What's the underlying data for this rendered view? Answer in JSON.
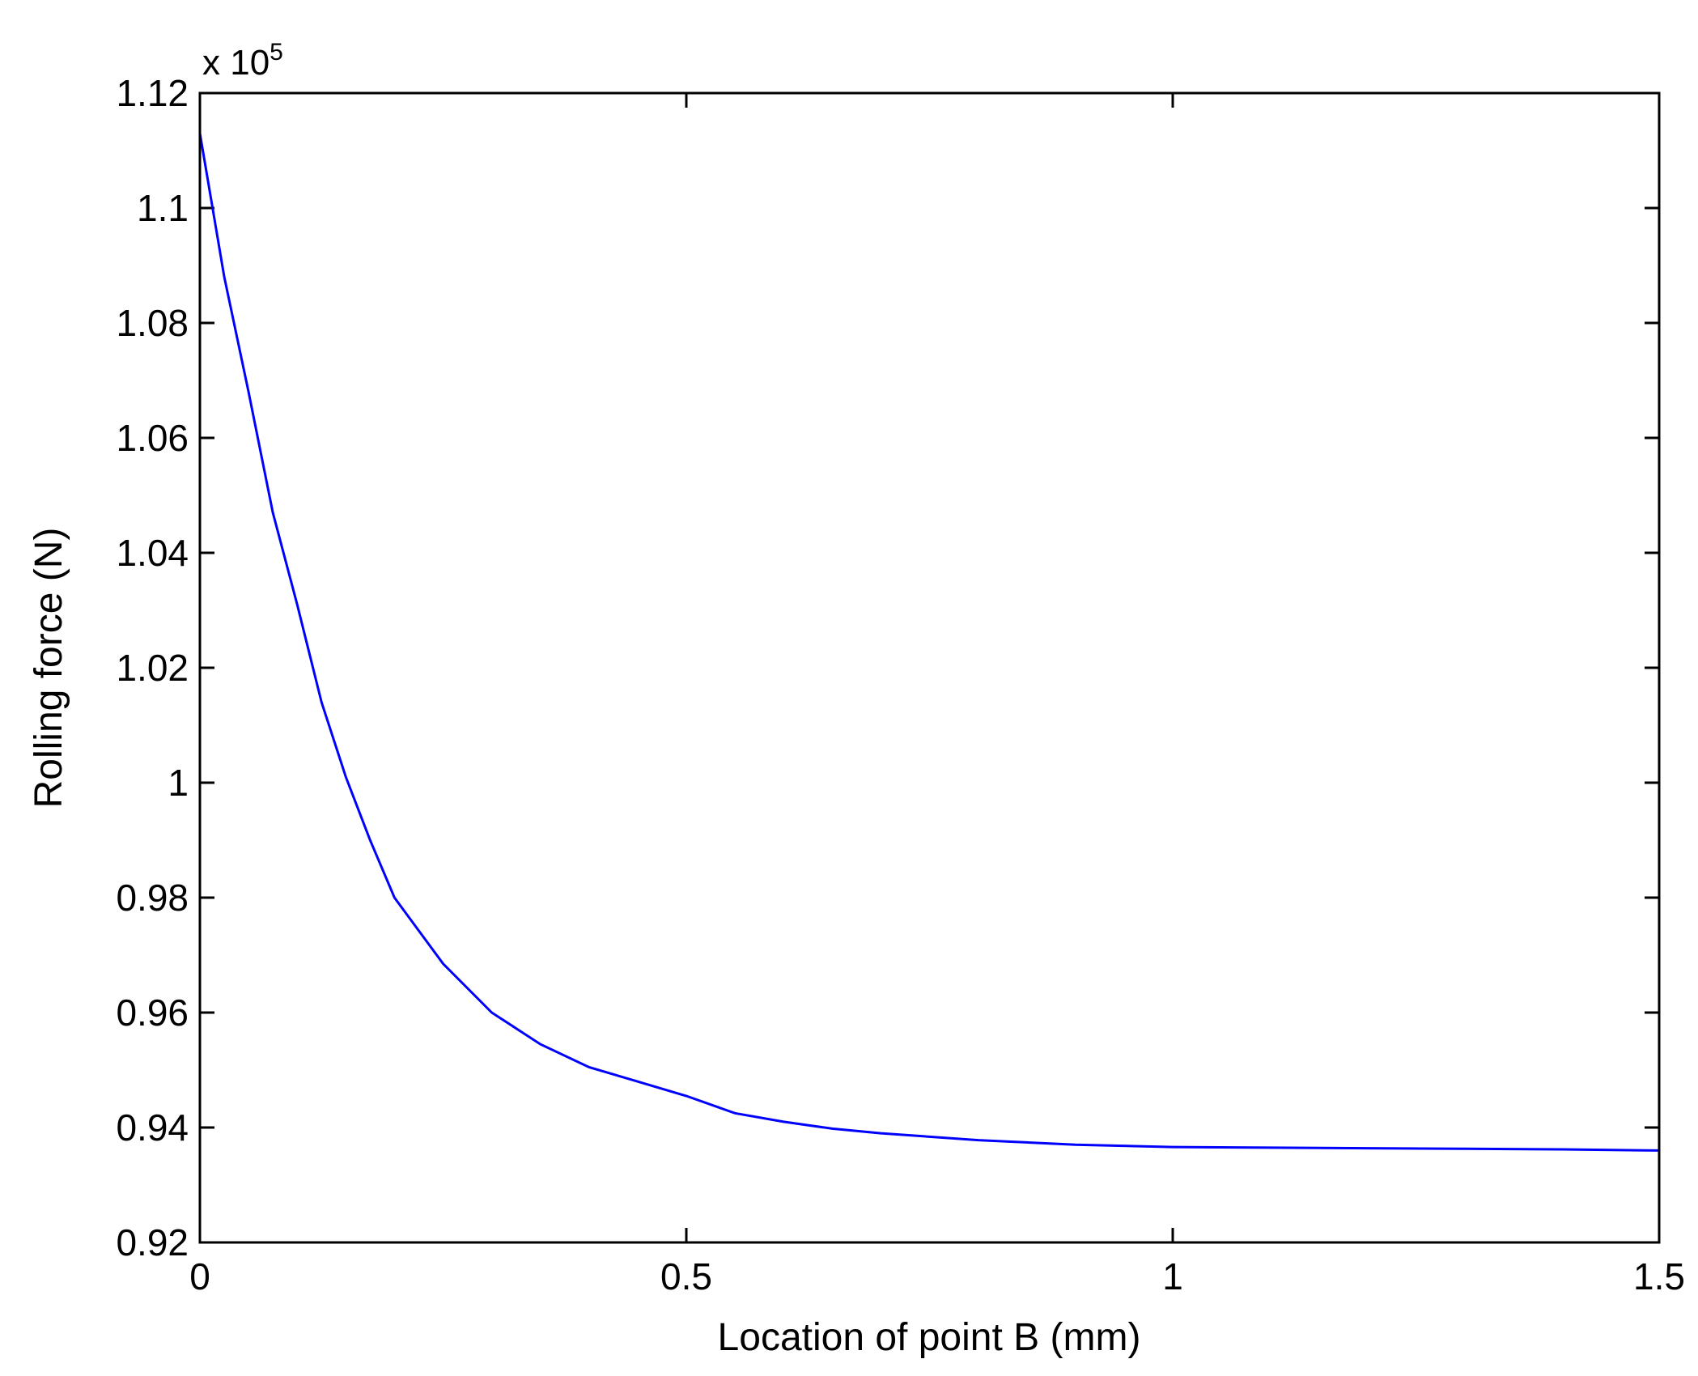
{
  "chart_data": {
    "type": "line",
    "xlabel": "Location of point B (mm)",
    "ylabel": "Rolling force (N)",
    "y_exponent": {
      "prefix": "x 10",
      "power": "5"
    },
    "xlim": [
      0,
      1.5
    ],
    "ylim": [
      0.92,
      1.12
    ],
    "xticks": [
      0,
      0.5,
      1,
      1.5
    ],
    "xtick_labels": [
      "0",
      "0.5",
      "1",
      "1.5"
    ],
    "yticks": [
      0.92,
      0.94,
      0.96,
      0.98,
      1.0,
      1.02,
      1.04,
      1.06,
      1.08,
      1.1,
      1.12
    ],
    "ytick_labels": [
      "0.92",
      "0.94",
      "0.96",
      "0.98",
      "1",
      "1.02",
      "1.04",
      "1.06",
      "1.08",
      "1.1",
      "1.12"
    ],
    "grid": false,
    "line_color": "#0000ff",
    "series": [
      {
        "x": [
          0,
          0.025,
          0.05,
          0.075,
          0.1,
          0.125,
          0.15,
          0.175,
          0.2,
          0.25,
          0.3,
          0.35,
          0.4,
          0.45,
          0.5,
          0.55,
          0.6,
          0.65,
          0.7,
          0.8,
          0.9,
          1.0,
          1.1,
          1.2,
          1.3,
          1.4,
          1.5
        ],
        "values": [
          1.113,
          1.088,
          1.068,
          1.047,
          1.031,
          1.014,
          1.001,
          0.99,
          0.98,
          0.9685,
          0.96,
          0.9545,
          0.9505,
          0.948,
          0.9455,
          0.9425,
          0.941,
          0.9398,
          0.939,
          0.9378,
          0.937,
          0.9366,
          0.9365,
          0.9364,
          0.9363,
          0.9362,
          0.936
        ]
      }
    ]
  }
}
